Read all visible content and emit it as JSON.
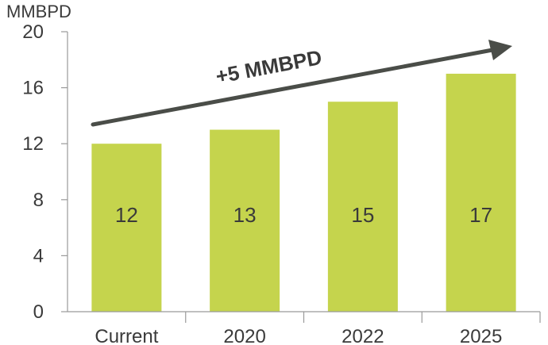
{
  "chart_data": {
    "type": "bar",
    "ylabel": "MMBPD",
    "categories": [
      "Current",
      "2020",
      "2022",
      "2025"
    ],
    "values": [
      12,
      13,
      15,
      17
    ],
    "ylim": [
      0,
      20
    ],
    "yticks": [
      0,
      4,
      8,
      12,
      16,
      20
    ],
    "annotation": "+5 MMBPD",
    "grid": false,
    "colors": {
      "bar": "#c5d44d",
      "arrow": "#4a4d48",
      "text": "#3a3a3a",
      "axis": "#9a9a9a"
    }
  }
}
